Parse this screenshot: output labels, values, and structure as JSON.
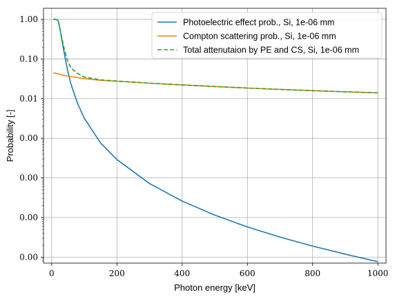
{
  "chart_data": {
    "type": "line",
    "xlabel": "Photon energy [keV]",
    "ylabel": "Probability [-]",
    "xlim": [
      -25,
      1025
    ],
    "ylim_log10": [
      -6.15,
      0.28
    ],
    "yscale": "log",
    "grid": true,
    "legend_position": "top-right",
    "x_ticks": [
      0,
      200,
      400,
      600,
      800,
      1000
    ],
    "x_tick_labels": [
      "0",
      "200",
      "400",
      "600",
      "800",
      "1000"
    ],
    "y_ticks": [
      1,
      0.1,
      0.01,
      0.001,
      0.0001,
      1e-05,
      1e-06
    ],
    "y_tick_labels": [
      "1.00",
      "0.10",
      "0.01",
      "0.00",
      "0.00",
      "0.00",
      "0.00"
    ],
    "series": [
      {
        "name": "Photoelectric effect prob., Si, 1e-06 mm",
        "color": "#1f77b4",
        "dash": "solid",
        "points": [
          [
            5,
            1.0
          ],
          [
            10,
            1.0
          ],
          [
            15,
            0.99
          ],
          [
            20,
            0.92
          ],
          [
            25,
            0.6
          ],
          [
            30,
            0.35
          ],
          [
            40,
            0.12
          ],
          [
            50,
            0.047
          ],
          [
            60,
            0.022
          ],
          [
            80,
            0.0074
          ],
          [
            100,
            0.0032
          ],
          [
            150,
            0.00076
          ],
          [
            200,
            0.00029
          ],
          [
            300,
            7.2e-05
          ],
          [
            400,
            2.6e-05
          ],
          [
            500,
            1.15e-05
          ],
          [
            600,
            5.8e-06
          ],
          [
            700,
            3.2e-06
          ],
          [
            800,
            1.9e-06
          ],
          [
            900,
            1.19e-06
          ],
          [
            1000,
            7.7e-07
          ]
        ]
      },
      {
        "name": "Compton scattering prob., Si, 1e-06 mm",
        "color": "#ff7f0e",
        "dash": "solid",
        "points": [
          [
            5,
            0.045
          ],
          [
            20,
            0.042
          ],
          [
            50,
            0.037
          ],
          [
            100,
            0.032
          ],
          [
            150,
            0.029
          ],
          [
            200,
            0.0275
          ],
          [
            300,
            0.0245
          ],
          [
            400,
            0.0222
          ],
          [
            500,
            0.0202
          ],
          [
            600,
            0.0185
          ],
          [
            700,
            0.0171
          ],
          [
            800,
            0.0159
          ],
          [
            900,
            0.0149
          ],
          [
            1000,
            0.014
          ]
        ]
      },
      {
        "name": "Total attenutaion by PE and CS, Si, 1e-06 mm",
        "color": "#2ca02c",
        "dash": "dashed",
        "points": [
          [
            5,
            1.0
          ],
          [
            10,
            1.0
          ],
          [
            15,
            0.99
          ],
          [
            20,
            0.93
          ],
          [
            25,
            0.63
          ],
          [
            30,
            0.38
          ],
          [
            40,
            0.16
          ],
          [
            50,
            0.084
          ],
          [
            60,
            0.058
          ],
          [
            80,
            0.043
          ],
          [
            100,
            0.035
          ],
          [
            150,
            0.0298
          ],
          [
            200,
            0.0278
          ],
          [
            300,
            0.0246
          ],
          [
            400,
            0.0222
          ],
          [
            500,
            0.0202
          ],
          [
            600,
            0.0185
          ],
          [
            700,
            0.0171
          ],
          [
            800,
            0.0159
          ],
          [
            900,
            0.0149
          ],
          [
            1000,
            0.014
          ]
        ]
      }
    ]
  }
}
